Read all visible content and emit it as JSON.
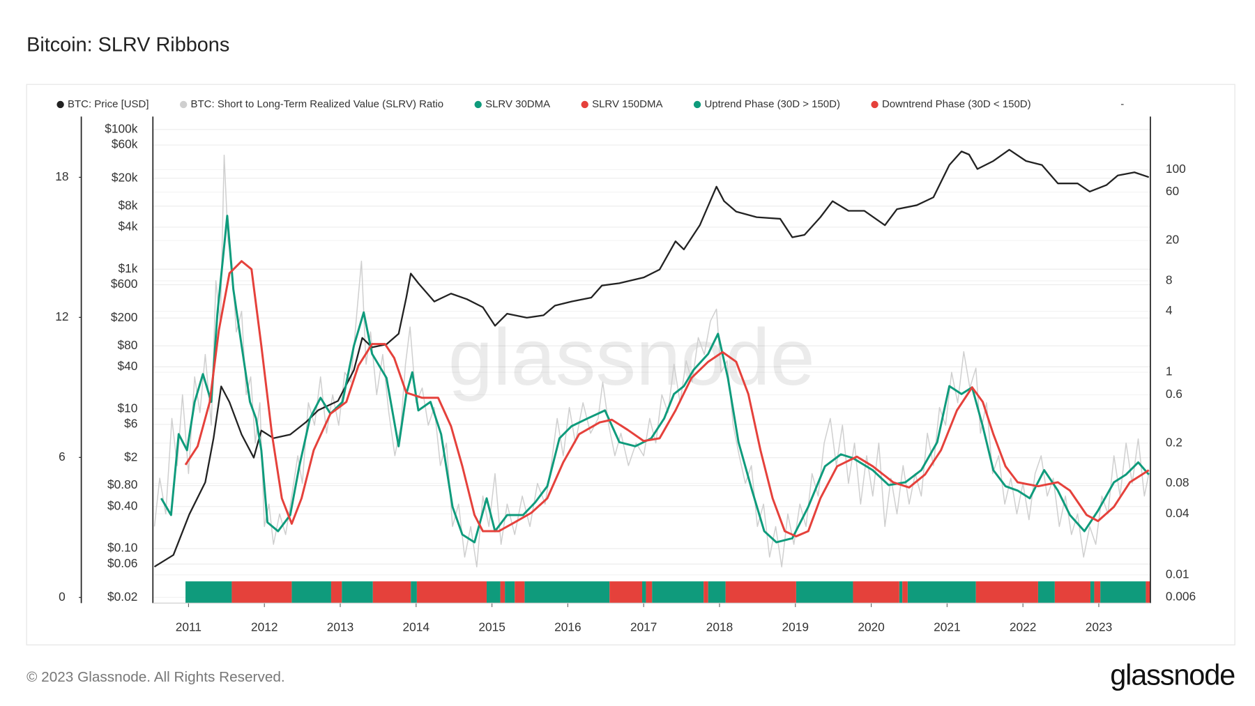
{
  "chart_data": {
    "type": "line",
    "title": "Bitcoin: SLRV Ribbons",
    "watermark": "glassnode",
    "copyright": "© 2023 Glassnode. All Rights Reserved.",
    "logo": "glassnode",
    "legend_note": "-",
    "xlim": [
      2010.53,
      2023.68
    ],
    "xticks": [
      2011,
      2012,
      2013,
      2014,
      2015,
      2016,
      2017,
      2018,
      2019,
      2020,
      2021,
      2022,
      2023
    ],
    "ylim": [
      0.0166,
      153000
    ],
    "ylog": true,
    "yticks": [
      {
        "value": 0.02,
        "label": "$0.02"
      },
      {
        "value": 0.06,
        "label": "$0.06"
      },
      {
        "value": 0.1,
        "label": "$0.10"
      },
      {
        "value": 0.4,
        "label": "$0.40"
      },
      {
        "value": 0.8,
        "label": "$0.80"
      },
      {
        "value": 2,
        "label": "$2"
      },
      {
        "value": 6,
        "label": "$6"
      },
      {
        "value": 10,
        "label": "$10"
      },
      {
        "value": 40,
        "label": "$40"
      },
      {
        "value": 80,
        "label": "$80"
      },
      {
        "value": 200,
        "label": "$200"
      },
      {
        "value": 600,
        "label": "$600"
      },
      {
        "value": 1000,
        "label": "$1k"
      },
      {
        "value": 4000,
        "label": "$4k"
      },
      {
        "value": 8000,
        "label": "$8k"
      },
      {
        "value": 20000,
        "label": "$20k"
      },
      {
        "value": 60000,
        "label": "$60k"
      },
      {
        "value": 100000,
        "label": "$100k"
      }
    ],
    "y2lim": [
      0.00527,
      334
    ],
    "y2log": true,
    "y2ticks": [
      0.006,
      0.01,
      0.04,
      0.08,
      0.2,
      0.6,
      1,
      4,
      8,
      20,
      60,
      100
    ],
    "y3lim": [
      -0.24,
      20.6
    ],
    "y3ticks": [
      0,
      6,
      12,
      18
    ],
    "grid": true,
    "legend": "top",
    "series": [
      {
        "name": "BTC: Price [USD]",
        "color": "#222222",
        "axis": "y",
        "x": [
          2010.55,
          2010.8,
          2011.01,
          2011.22,
          2011.33,
          2011.43,
          2011.54,
          2011.7,
          2011.86,
          2011.96,
          2012.12,
          2012.34,
          2012.55,
          2012.71,
          2012.97,
          2013.18,
          2013.29,
          2013.42,
          2013.61,
          2013.77,
          2013.87,
          2013.93,
          2014.03,
          2014.24,
          2014.46,
          2014.67,
          2014.88,
          2015.04,
          2015.2,
          2015.46,
          2015.68,
          2015.83,
          2016.05,
          2016.31,
          2016.45,
          2016.68,
          2017.0,
          2017.21,
          2017.42,
          2017.53,
          2017.74,
          2017.96,
          2018.06,
          2018.22,
          2018.49,
          2018.8,
          2018.96,
          2019.12,
          2019.33,
          2019.49,
          2019.7,
          2019.91,
          2020.18,
          2020.34,
          2020.6,
          2020.82,
          2021.03,
          2021.19,
          2021.29,
          2021.4,
          2021.61,
          2021.82,
          2022.04,
          2022.25,
          2022.46,
          2022.72,
          2022.88,
          2023.1,
          2023.25,
          2023.47,
          2023.66
        ],
        "values": [
          0.055,
          0.081,
          0.31,
          0.89,
          3.8,
          21,
          12.5,
          4.3,
          2.0,
          4.9,
          3.8,
          4.3,
          6.5,
          9.6,
          13,
          36,
          104,
          76,
          84,
          119,
          392,
          867,
          631,
          344,
          448,
          372,
          285,
          155,
          231,
          202,
          219,
          301,
          344,
          392,
          583,
          631,
          760,
          990,
          2510,
          1920,
          4260,
          15200,
          9420,
          6670,
          5550,
          5260,
          2860,
          3100,
          5550,
          9420,
          6850,
          6850,
          4260,
          7230,
          8240,
          10700,
          31000,
          48600,
          43800,
          27200,
          35400,
          51300,
          35400,
          31000,
          16900,
          16900,
          12900,
          16000,
          22000,
          24400,
          20800
        ]
      },
      {
        "name": "BTC: Short to Long-Term Realized Value (SLRV) Ratio",
        "color": "#cfcfcf",
        "axis": "y2",
        "x": [
          2010.55,
          2010.62,
          2010.7,
          2010.78,
          2010.85,
          2010.92,
          2011.0,
          2011.08,
          2011.15,
          2011.22,
          2011.3,
          2011.36,
          2011.42,
          2011.47,
          2011.52,
          2011.57,
          2011.63,
          2011.7,
          2011.76,
          2011.82,
          2011.88,
          2011.94,
          2012.0,
          2012.06,
          2012.12,
          2012.2,
          2012.28,
          2012.36,
          2012.44,
          2012.5,
          2012.58,
          2012.66,
          2012.74,
          2012.82,
          2012.9,
          2012.98,
          2013.06,
          2013.14,
          2013.22,
          2013.28,
          2013.34,
          2013.4,
          2013.48,
          2013.56,
          2013.64,
          2013.72,
          2013.8,
          2013.86,
          2013.92,
          2014.0,
          2014.08,
          2014.16,
          2014.24,
          2014.32,
          2014.4,
          2014.48,
          2014.56,
          2014.64,
          2014.72,
          2014.8,
          2014.88,
          2014.96,
          2015.04,
          2015.12,
          2015.2,
          2015.3,
          2015.4,
          2015.5,
          2015.6,
          2015.7,
          2015.78,
          2015.86,
          2015.94,
          2016.02,
          2016.1,
          2016.2,
          2016.3,
          2016.4,
          2016.46,
          2016.54,
          2016.62,
          2016.7,
          2016.8,
          2016.9,
          2017.0,
          2017.08,
          2017.16,
          2017.24,
          2017.32,
          2017.4,
          2017.48,
          2017.56,
          2017.64,
          2017.72,
          2017.8,
          2017.88,
          2017.96,
          2018.02,
          2018.1,
          2018.18,
          2018.26,
          2018.34,
          2018.42,
          2018.5,
          2018.58,
          2018.66,
          2018.74,
          2018.82,
          2018.9,
          2018.98,
          2019.06,
          2019.14,
          2019.22,
          2019.3,
          2019.38,
          2019.46,
          2019.54,
          2019.62,
          2019.7,
          2019.78,
          2019.86,
          2019.94,
          2020.02,
          2020.1,
          2020.18,
          2020.26,
          2020.34,
          2020.42,
          2020.5,
          2020.58,
          2020.66,
          2020.74,
          2020.82,
          2020.9,
          2020.98,
          2021.06,
          2021.14,
          2021.22,
          2021.3,
          2021.38,
          2021.44,
          2021.52,
          2021.6,
          2021.68,
          2021.76,
          2021.84,
          2021.92,
          2022.0,
          2022.08,
          2022.16,
          2022.24,
          2022.32,
          2022.4,
          2022.48,
          2022.56,
          2022.64,
          2022.72,
          2022.8,
          2022.88,
          2022.96,
          2023.04,
          2023.12,
          2023.2,
          2023.28,
          2023.36,
          2023.44,
          2023.52,
          2023.6,
          2023.66
        ],
        "values": [
          0.03,
          0.09,
          0.04,
          0.35,
          0.12,
          0.6,
          0.1,
          0.9,
          0.4,
          1.5,
          0.3,
          8,
          3,
          139,
          20,
          12,
          2.5,
          4,
          0.6,
          0.9,
          0.2,
          0.5,
          0.03,
          0.05,
          0.02,
          0.04,
          0.025,
          0.06,
          0.15,
          0.08,
          0.5,
          0.3,
          0.9,
          0.25,
          0.6,
          0.3,
          1.0,
          0.8,
          4,
          12.5,
          1.2,
          2.5,
          0.6,
          1.5,
          0.4,
          0.15,
          0.3,
          1.2,
          2.8,
          0.5,
          0.7,
          0.3,
          0.45,
          0.12,
          0.2,
          0.03,
          0.05,
          0.015,
          0.03,
          0.012,
          0.06,
          0.03,
          0.1,
          0.02,
          0.05,
          0.025,
          0.06,
          0.03,
          0.08,
          0.05,
          0.12,
          0.35,
          0.15,
          0.45,
          0.2,
          0.5,
          0.25,
          0.35,
          0.8,
          0.3,
          0.15,
          0.25,
          0.12,
          0.2,
          0.15,
          0.35,
          0.2,
          0.6,
          0.4,
          1.2,
          0.5,
          1.3,
          0.8,
          2.2,
          1.5,
          3.2,
          4.2,
          1.0,
          1.3,
          0.3,
          0.15,
          0.08,
          0.12,
          0.03,
          0.05,
          0.015,
          0.03,
          0.012,
          0.04,
          0.02,
          0.05,
          0.03,
          0.1,
          0.06,
          0.2,
          0.35,
          0.12,
          0.3,
          0.08,
          0.2,
          0.05,
          0.15,
          0.06,
          0.2,
          0.03,
          0.09,
          0.04,
          0.12,
          0.05,
          0.1,
          0.06,
          0.25,
          0.12,
          0.45,
          0.3,
          1.0,
          0.5,
          1.6,
          0.7,
          1.1,
          0.25,
          0.5,
          0.1,
          0.15,
          0.05,
          0.09,
          0.04,
          0.08,
          0.035,
          0.1,
          0.15,
          0.06,
          0.09,
          0.03,
          0.06,
          0.025,
          0.04,
          0.015,
          0.03,
          0.02,
          0.06,
          0.04,
          0.15,
          0.06,
          0.2,
          0.08,
          0.22,
          0.06,
          0.1
        ]
      },
      {
        "name": "SLRV 30DMA",
        "color": "#0f9b7c",
        "axis": "y2",
        "x": [
          2010.64,
          2010.77,
          2010.87,
          2010.98,
          2011.08,
          2011.19,
          2011.3,
          2011.38,
          2011.51,
          2011.59,
          2011.7,
          2011.81,
          2011.89,
          2011.96,
          2012.04,
          2012.18,
          2012.34,
          2012.46,
          2012.6,
          2012.74,
          2012.87,
          2013.03,
          2013.18,
          2013.31,
          2013.42,
          2013.61,
          2013.77,
          2013.87,
          2013.95,
          2014.03,
          2014.19,
          2014.33,
          2014.48,
          2014.61,
          2014.77,
          2014.93,
          2015.04,
          2015.2,
          2015.41,
          2015.57,
          2015.73,
          2015.89,
          2016.05,
          2016.26,
          2016.49,
          2016.68,
          2016.89,
          2017.1,
          2017.27,
          2017.4,
          2017.53,
          2017.66,
          2017.85,
          2017.98,
          2018.11,
          2018.25,
          2018.43,
          2018.59,
          2018.75,
          2018.96,
          2019.17,
          2019.39,
          2019.6,
          2019.76,
          2020.02,
          2020.23,
          2020.45,
          2020.66,
          2020.87,
          2021.03,
          2021.19,
          2021.33,
          2021.47,
          2021.61,
          2021.77,
          2021.93,
          2022.09,
          2022.28,
          2022.46,
          2022.62,
          2022.81,
          2022.99,
          2023.2,
          2023.36,
          2023.52,
          2023.66
        ],
        "values": [
          0.057,
          0.039,
          0.245,
          0.17,
          0.51,
          0.96,
          0.51,
          3.8,
          35,
          6.6,
          1.83,
          0.51,
          0.35,
          0.17,
          0.033,
          0.027,
          0.039,
          0.118,
          0.35,
          0.56,
          0.39,
          0.51,
          1.83,
          3.9,
          1.52,
          0.88,
          0.186,
          0.61,
          1.0,
          0.42,
          0.51,
          0.245,
          0.047,
          0.025,
          0.021,
          0.057,
          0.027,
          0.039,
          0.039,
          0.052,
          0.075,
          0.223,
          0.294,
          0.35,
          0.42,
          0.204,
          0.186,
          0.223,
          0.35,
          0.61,
          0.73,
          1.06,
          1.52,
          2.4,
          0.88,
          0.204,
          0.068,
          0.027,
          0.021,
          0.023,
          0.047,
          0.118,
          0.155,
          0.142,
          0.108,
          0.077,
          0.082,
          0.108,
          0.204,
          0.73,
          0.61,
          0.71,
          0.294,
          0.108,
          0.075,
          0.068,
          0.057,
          0.108,
          0.068,
          0.039,
          0.027,
          0.043,
          0.082,
          0.098,
          0.129,
          0.098
        ]
      },
      {
        "name": "SLRV 150DMA",
        "color": "#e5413b",
        "axis": "y2",
        "x": [
          2010.96,
          2011.12,
          2011.28,
          2011.4,
          2011.54,
          2011.7,
          2011.83,
          2011.96,
          2012.1,
          2012.23,
          2012.36,
          2012.49,
          2012.65,
          2012.87,
          2013.08,
          2013.24,
          2013.42,
          2013.59,
          2013.71,
          2013.87,
          2014.08,
          2014.29,
          2014.46,
          2014.61,
          2014.77,
          2014.88,
          2015.09,
          2015.3,
          2015.52,
          2015.73,
          2015.94,
          2016.15,
          2016.42,
          2016.58,
          2016.79,
          2017.0,
          2017.21,
          2017.42,
          2017.63,
          2017.85,
          2018.04,
          2018.22,
          2018.38,
          2018.54,
          2018.7,
          2018.86,
          2019.01,
          2019.17,
          2019.33,
          2019.55,
          2019.81,
          2020.02,
          2020.29,
          2020.5,
          2020.71,
          2020.92,
          2021.13,
          2021.33,
          2021.47,
          2021.61,
          2021.77,
          2021.93,
          2022.2,
          2022.46,
          2022.62,
          2022.84,
          2022.99,
          2023.2,
          2023.41,
          2023.66
        ],
        "values": [
          0.122,
          0.186,
          0.51,
          2.6,
          9.5,
          12.5,
          10.4,
          1.83,
          0.245,
          0.057,
          0.032,
          0.057,
          0.17,
          0.39,
          0.51,
          1.16,
          1.9,
          1.9,
          1.39,
          0.63,
          0.56,
          0.56,
          0.294,
          0.118,
          0.039,
          0.027,
          0.027,
          0.033,
          0.041,
          0.057,
          0.129,
          0.245,
          0.32,
          0.34,
          0.27,
          0.21,
          0.223,
          0.42,
          0.88,
          1.27,
          1.58,
          1.27,
          0.61,
          0.17,
          0.057,
          0.027,
          0.024,
          0.027,
          0.057,
          0.118,
          0.147,
          0.118,
          0.082,
          0.073,
          0.098,
          0.17,
          0.42,
          0.71,
          0.51,
          0.245,
          0.118,
          0.082,
          0.075,
          0.082,
          0.068,
          0.039,
          0.034,
          0.047,
          0.082,
          0.108
        ]
      },
      {
        "name": "Uptrend Phase (30D > 150D)",
        "color": "#0f9b7c",
        "axis": "band",
        "ranges": [
          [
            2010.96,
            2011.57
          ],
          [
            2012.36,
            2012.88
          ],
          [
            2013.02,
            2013.43
          ],
          [
            2013.93,
            2014.01
          ],
          [
            2014.93,
            2015.11
          ],
          [
            2015.17,
            2015.3
          ],
          [
            2015.43,
            2016.55
          ],
          [
            2016.98,
            2017.03
          ],
          [
            2017.11,
            2017.79
          ],
          [
            2017.85,
            2018.08
          ],
          [
            2019.01,
            2019.76
          ],
          [
            2020.37,
            2020.41
          ],
          [
            2020.48,
            2021.38
          ],
          [
            2022.2,
            2022.42
          ],
          [
            2022.89,
            2022.94
          ],
          [
            2023.02,
            2023.62
          ]
        ]
      },
      {
        "name": "Downtrend Phase (30D < 150D)",
        "color": "#e5413b",
        "axis": "band",
        "ranges": [
          [
            2011.57,
            2012.36
          ],
          [
            2012.88,
            2013.02
          ],
          [
            2013.43,
            2013.93
          ],
          [
            2014.01,
            2014.93
          ],
          [
            2015.11,
            2015.17
          ],
          [
            2015.3,
            2015.43
          ],
          [
            2016.55,
            2016.98
          ],
          [
            2017.03,
            2017.11
          ],
          [
            2017.79,
            2017.85
          ],
          [
            2018.08,
            2019.01
          ],
          [
            2019.76,
            2020.37
          ],
          [
            2020.41,
            2020.48
          ],
          [
            2021.38,
            2022.2
          ],
          [
            2022.42,
            2022.89
          ],
          [
            2022.94,
            2023.02
          ],
          [
            2023.62,
            2023.68
          ]
        ]
      }
    ]
  }
}
